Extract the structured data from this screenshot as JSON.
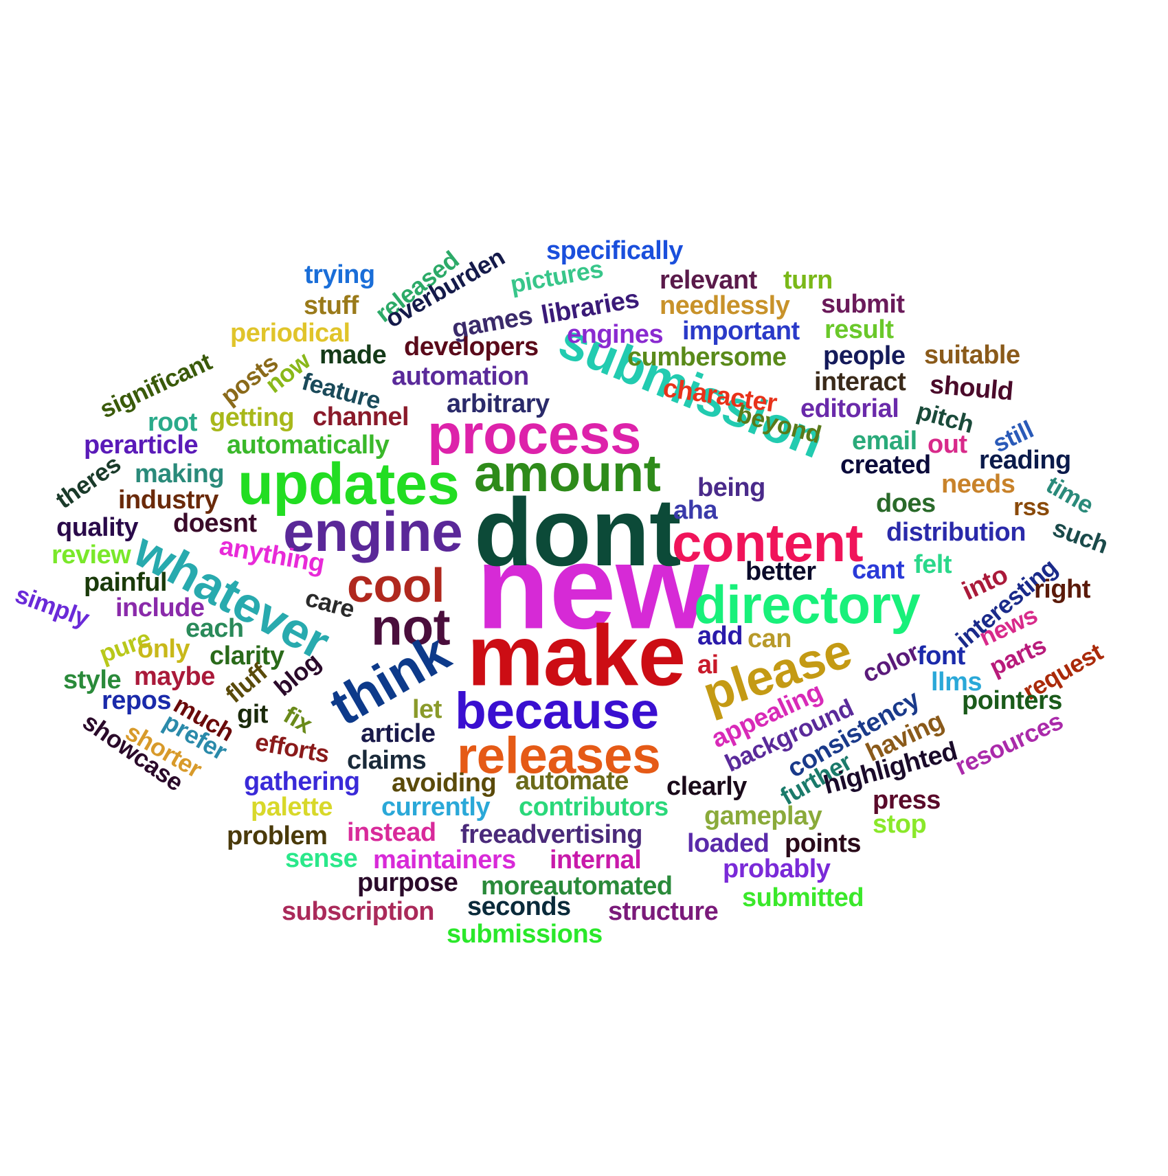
{
  "words": [
    {
      "text": "new",
      "color": "#d62ad6"
    },
    {
      "text": "dont",
      "color": "#0c4a38"
    },
    {
      "text": "make",
      "color": "#cc0d14"
    },
    {
      "text": "because",
      "color": "#3a0fd0"
    },
    {
      "text": "releases",
      "color": "#e55a16"
    },
    {
      "text": "engine",
      "color": "#5a2898"
    },
    {
      "text": "content",
      "color": "#f0145a"
    },
    {
      "text": "updates",
      "color": "#22dd22"
    },
    {
      "text": "amount",
      "color": "#2e8b1a"
    },
    {
      "text": "process",
      "color": "#dd22aa"
    },
    {
      "text": "submission",
      "color": "#22cbb0"
    },
    {
      "text": "directory",
      "color": "#18f07a"
    },
    {
      "text": "please",
      "color": "#c49a14"
    },
    {
      "text": "cool",
      "color": "#b0281e"
    },
    {
      "text": "not",
      "color": "#4a0e3c"
    },
    {
      "text": "think",
      "color": "#0d3a8a"
    },
    {
      "text": "whatever",
      "color": "#28aaae"
    },
    {
      "text": "specifically",
      "color": "#1a4fdc"
    },
    {
      "text": "trying",
      "color": "#1a6ed8"
    },
    {
      "text": "released",
      "color": "#2caa68"
    },
    {
      "text": "overburden",
      "color": "#141a4a"
    },
    {
      "text": "pictures",
      "color": "#38c68a"
    },
    {
      "text": "relevant",
      "color": "#5a1a4a"
    },
    {
      "text": "turn",
      "color": "#7ab818"
    },
    {
      "text": "stuff",
      "color": "#9a7a1a"
    },
    {
      "text": "games",
      "color": "#3a2a6a"
    },
    {
      "text": "libraries",
      "color": "#3a1a78"
    },
    {
      "text": "needlessly",
      "color": "#c8922a"
    },
    {
      "text": "submit",
      "color": "#6a1a5a"
    },
    {
      "text": "periodical",
      "color": "#e0c42a"
    },
    {
      "text": "engines",
      "color": "#8a2ad0"
    },
    {
      "text": "important",
      "color": "#2a3ac8"
    },
    {
      "text": "result",
      "color": "#6ac82a"
    },
    {
      "text": "significant",
      "color": "#3a5a0a"
    },
    {
      "text": "posts",
      "color": "#8a6a1a"
    },
    {
      "text": "now",
      "color": "#8ab81a"
    },
    {
      "text": "made",
      "color": "#143a18"
    },
    {
      "text": "developers",
      "color": "#5a0a1a"
    },
    {
      "text": "cumbersome",
      "color": "#5a8a1a"
    },
    {
      "text": "people",
      "color": "#141a5a"
    },
    {
      "text": "suitable",
      "color": "#8a5a1a"
    },
    {
      "text": "feature",
      "color": "#1a4a5a"
    },
    {
      "text": "automation",
      "color": "#5a2a9a"
    },
    {
      "text": "character",
      "color": "#e8321a"
    },
    {
      "text": "interact",
      "color": "#3a2a1a"
    },
    {
      "text": "should",
      "color": "#4a0a2a"
    },
    {
      "text": "root",
      "color": "#2aaa8a"
    },
    {
      "text": "getting",
      "color": "#a8b81a"
    },
    {
      "text": "channel",
      "color": "#8a1a2a"
    },
    {
      "text": "arbitrary",
      "color": "#2a2a6a"
    },
    {
      "text": "beyond",
      "color": "#5a7a1a"
    },
    {
      "text": "editorial",
      "color": "#6a2aaa"
    },
    {
      "text": "pitch",
      "color": "#1a4a3a"
    },
    {
      "text": "perarticle",
      "color": "#5a1ab8"
    },
    {
      "text": "automatically",
      "color": "#3ab82a"
    },
    {
      "text": "email",
      "color": "#2aaa7a"
    },
    {
      "text": "out",
      "color": "#d82a8a"
    },
    {
      "text": "still",
      "color": "#2a5ab8"
    },
    {
      "text": "theres",
      "color": "#1a3a2a"
    },
    {
      "text": "making",
      "color": "#2a8a7a"
    },
    {
      "text": "created",
      "color": "#0a0a3a"
    },
    {
      "text": "reading",
      "color": "#0a1a4a"
    },
    {
      "text": "industry",
      "color": "#6a2a0a"
    },
    {
      "text": "being",
      "color": "#4a2a8a"
    },
    {
      "text": "needs",
      "color": "#c8822a"
    },
    {
      "text": "time",
      "color": "#2a8a7a"
    },
    {
      "text": "quality",
      "color": "#2a0a4a"
    },
    {
      "text": "doesnt",
      "color": "#3a0a2a"
    },
    {
      "text": "aha",
      "color": "#3a3aaa"
    },
    {
      "text": "does",
      "color": "#2a6a2a"
    },
    {
      "text": "rss",
      "color": "#8a4a0a"
    },
    {
      "text": "distribution",
      "color": "#2a2aaa"
    },
    {
      "text": "such",
      "color": "#1a4a4a"
    },
    {
      "text": "review",
      "color": "#7ae82a"
    },
    {
      "text": "anything",
      "color": "#e82ad8"
    },
    {
      "text": "better",
      "color": "#0a0a2a"
    },
    {
      "text": "cant",
      "color": "#2a3ad8"
    },
    {
      "text": "felt",
      "color": "#2ad88a"
    },
    {
      "text": "into",
      "color": "#aa1a3a"
    },
    {
      "text": "interesting",
      "color": "#1a2a8a"
    },
    {
      "text": "right",
      "color": "#5a1a0a"
    },
    {
      "text": "painful",
      "color": "#1a3a0a"
    },
    {
      "text": "simply",
      "color": "#6a2ad8"
    },
    {
      "text": "include",
      "color": "#8a2aaa"
    },
    {
      "text": "care",
      "color": "#2a2a2a"
    },
    {
      "text": "news",
      "color": "#d82a8a"
    },
    {
      "text": "parts",
      "color": "#b81a7a"
    },
    {
      "text": "request",
      "color": "#aa2a0a"
    },
    {
      "text": "pure",
      "color": "#b8c81a"
    },
    {
      "text": "each",
      "color": "#2a8a5a"
    },
    {
      "text": "only",
      "color": "#c8b81a"
    },
    {
      "text": "clarity",
      "color": "#2a6a1a"
    },
    {
      "text": "add",
      "color": "#2a1aaa"
    },
    {
      "text": "can",
      "color": "#b89a2a"
    },
    {
      "text": "ai",
      "color": "#c81a2a"
    },
    {
      "text": "color",
      "color": "#5a1a7a"
    },
    {
      "text": "font",
      "color": "#1a2aaa"
    },
    {
      "text": "llms",
      "color": "#2aa8d8"
    },
    {
      "text": "style",
      "color": "#2a8a3a"
    },
    {
      "text": "maybe",
      "color": "#aa1a3a"
    },
    {
      "text": "fluff",
      "color": "#5a4a0a"
    },
    {
      "text": "blog",
      "color": "#2a0a2a"
    },
    {
      "text": "repos",
      "color": "#1a2aaa"
    },
    {
      "text": "git",
      "color": "#1a2a0a"
    },
    {
      "text": "fix",
      "color": "#6a8a1a"
    },
    {
      "text": "let",
      "color": "#8a9a2a"
    },
    {
      "text": "much",
      "color": "#6a0a0a"
    },
    {
      "text": "appealing",
      "color": "#d82ab8"
    },
    {
      "text": "background",
      "color": "#5a2a9a"
    },
    {
      "text": "consistency",
      "color": "#1a3a8a"
    },
    {
      "text": "having",
      "color": "#8a5a1a"
    },
    {
      "text": "pointers",
      "color": "#1a5a1a"
    },
    {
      "text": "showcase",
      "color": "#2a0a2a"
    },
    {
      "text": "shorter",
      "color": "#d89a2a"
    },
    {
      "text": "prefer",
      "color": "#2a8aaa"
    },
    {
      "text": "efforts",
      "color": "#8a1a1a"
    },
    {
      "text": "article",
      "color": "#1a1a4a"
    },
    {
      "text": "claims",
      "color": "#1a2a3a"
    },
    {
      "text": "further",
      "color": "#1a7a6a"
    },
    {
      "text": "highlighted",
      "color": "#1a0a2a"
    },
    {
      "text": "resources",
      "color": "#aa2aaa"
    },
    {
      "text": "gathering",
      "color": "#3a2ad8"
    },
    {
      "text": "avoiding",
      "color": "#5a4a0a"
    },
    {
      "text": "automate",
      "color": "#6a6a1a"
    },
    {
      "text": "clearly",
      "color": "#1a0a1a"
    },
    {
      "text": "press",
      "color": "#5a0a2a"
    },
    {
      "text": "palette",
      "color": "#d8d82a"
    },
    {
      "text": "currently",
      "color": "#2aa8d8"
    },
    {
      "text": "contributors",
      "color": "#2ad87a"
    },
    {
      "text": "gameplay",
      "color": "#8aaa3a"
    },
    {
      "text": "stop",
      "color": "#8ae82a"
    },
    {
      "text": "problem",
      "color": "#4a3a0a"
    },
    {
      "text": "instead",
      "color": "#d82a9a"
    },
    {
      "text": "freeadvertising",
      "color": "#4a2a7a"
    },
    {
      "text": "loaded",
      "color": "#5a2aaa"
    },
    {
      "text": "points",
      "color": "#2a0a1a"
    },
    {
      "text": "sense",
      "color": "#2ae88a"
    },
    {
      "text": "maintainers",
      "color": "#d82ad8"
    },
    {
      "text": "internal",
      "color": "#c81aaa"
    },
    {
      "text": "probably",
      "color": "#7a2ad8"
    },
    {
      "text": "purpose",
      "color": "#2a0a2a"
    },
    {
      "text": "moreautomated",
      "color": "#2a8a3a"
    },
    {
      "text": "submitted",
      "color": "#3ae82a"
    },
    {
      "text": "subscription",
      "color": "#aa2a5a"
    },
    {
      "text": "seconds",
      "color": "#0a2a3a"
    },
    {
      "text": "structure",
      "color": "#7a1a7a"
    },
    {
      "text": "submissions",
      "color": "#2ae82a"
    }
  ]
}
